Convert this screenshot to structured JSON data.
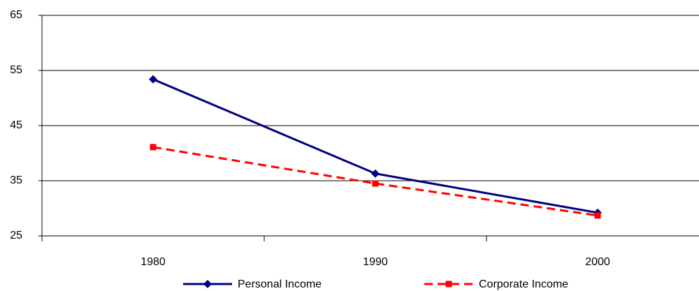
{
  "chart_data": {
    "type": "line",
    "categories": [
      "1980",
      "1990",
      "2000"
    ],
    "series": [
      {
        "name": "Personal Income",
        "color": "#000080",
        "marker": "diamond",
        "dash": "solid",
        "values": [
          53.4,
          36.3,
          29.2
        ]
      },
      {
        "name": "Corporate Income",
        "color": "#ff0000",
        "marker": "square",
        "dash": "dashed",
        "values": [
          41.1,
          34.5,
          28.7
        ]
      }
    ],
    "ylim": [
      25,
      65
    ],
    "yticks": [
      25,
      35,
      45,
      55,
      65
    ],
    "grid": true,
    "legend": "bottom"
  }
}
